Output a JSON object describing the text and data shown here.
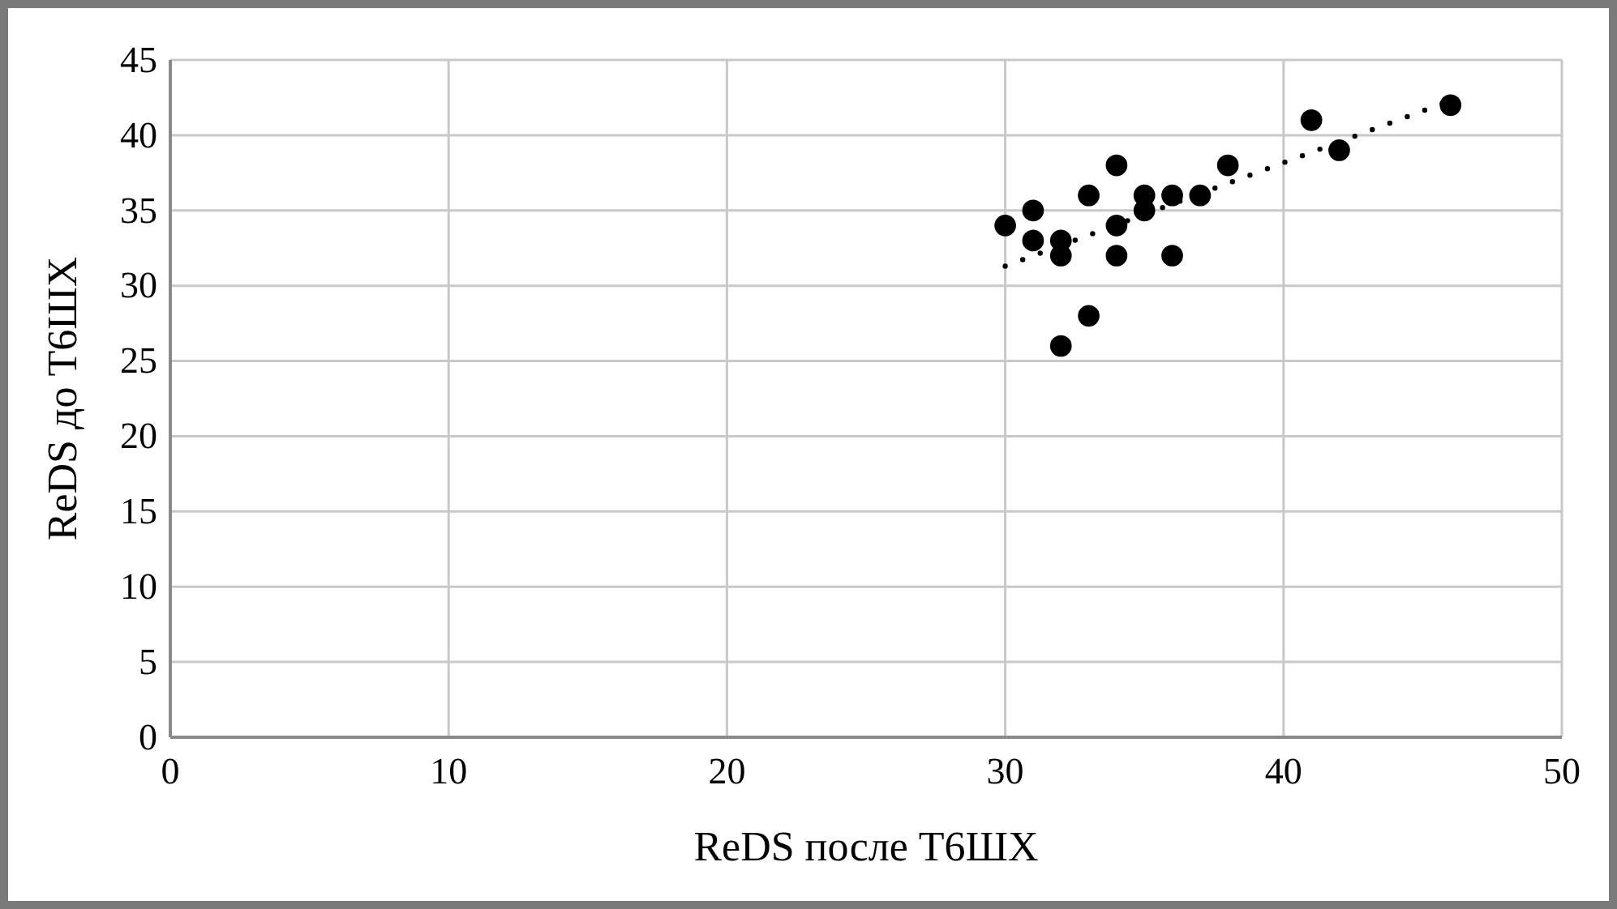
{
  "chart_data": {
    "type": "scatter",
    "xlabel": "ReDS после Т6ШХ",
    "ylabel": "ReDS до Т6ШХ",
    "xlim": [
      0,
      50
    ],
    "xticks": [
      0,
      10,
      20,
      30,
      40,
      50
    ],
    "ylim": [
      0,
      45
    ],
    "yticks": [
      0,
      5,
      10,
      15,
      20,
      25,
      30,
      35,
      40,
      45
    ],
    "grid": true,
    "series": [
      {
        "type": "scatter",
        "color": "#000000",
        "marker": "circle",
        "x": [
          30,
          31,
          31,
          32,
          32,
          32,
          33,
          33,
          34,
          34,
          34,
          35,
          35,
          36,
          36,
          37,
          38,
          41,
          42,
          46
        ],
        "values": [
          34,
          35,
          33,
          33,
          32,
          26,
          36,
          28,
          38,
          34,
          32,
          36,
          35,
          36,
          32,
          36,
          38,
          41,
          39,
          42
        ]
      },
      {
        "type": "line",
        "color": "#000000",
        "line_style": "dotted",
        "marker": "none",
        "x": [
          30,
          46
        ],
        "values": [
          31.3,
          42.3
        ]
      }
    ]
  }
}
